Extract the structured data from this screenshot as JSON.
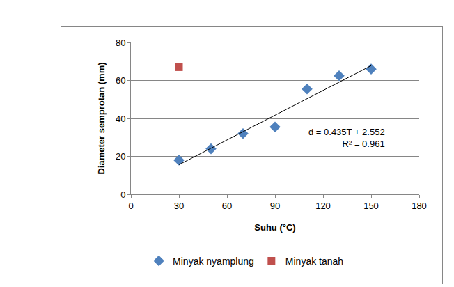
{
  "chart_data": {
    "type": "scatter",
    "x_label": "Suhu (°C)",
    "y_label": "Diameter semprotan (mm)",
    "series": [
      {
        "name": "Minyak nyamplung",
        "color": "#4f81bd",
        "marker": "diamond",
        "x": [
          30,
          50,
          70,
          90,
          110,
          130,
          150
        ],
        "values": [
          18,
          24,
          32,
          35.5,
          55.5,
          62.5,
          66
        ]
      },
      {
        "name": "Minyak tanah",
        "color": "#c0504d",
        "marker": "square",
        "x": [
          30
        ],
        "values": [
          67
        ]
      },
      {
        "type": "line",
        "color": "#000000",
        "line_style": "solid",
        "x": [
          30,
          150
        ],
        "values": [
          15.6,
          67.8
        ]
      }
    ],
    "annotations": [
      "d = 0.435T + 2.552",
      "R² = 0.961"
    ],
    "xlim": [
      0,
      180
    ],
    "xticks": [
      0,
      30,
      60,
      90,
      120,
      150,
      180
    ],
    "ylim": [
      0,
      80
    ],
    "yticks": [
      0,
      20,
      40,
      60,
      80
    ],
    "grid": true,
    "legend": "bottom"
  }
}
